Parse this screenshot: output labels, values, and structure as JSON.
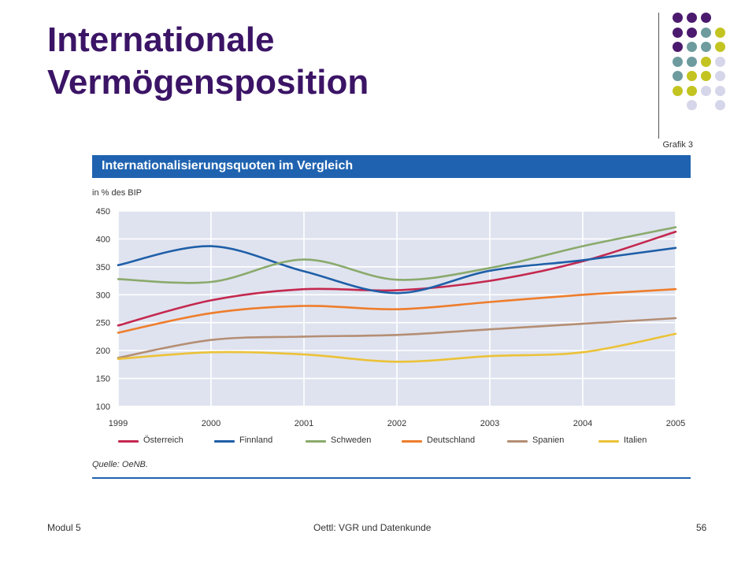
{
  "slide": {
    "title_line1": "Internationale",
    "title_line2": "Vermögensposition",
    "footer_left": "Modul 5",
    "footer_center": "Oettl: VGR und Datenkunde",
    "footer_right": "56"
  },
  "decoration": {
    "dot_colors": [
      "#4b1a6e",
      "#6e9b9e",
      "#c3c421",
      "#d6d6ea"
    ],
    "dot_rows": [
      [
        0,
        0,
        0,
        null
      ],
      [
        0,
        0,
        1,
        2
      ],
      [
        0,
        1,
        1,
        2
      ],
      [
        1,
        1,
        2,
        3
      ],
      [
        1,
        2,
        2,
        3
      ],
      [
        2,
        2,
        3,
        3
      ],
      [
        null,
        3,
        null,
        3
      ]
    ]
  },
  "chart_data": {
    "type": "line",
    "grafik_label": "Grafik 3",
    "title": "Internationalisierungsquoten im Vergleich",
    "ylabel": "in % des BIP",
    "source": "Quelle: OeNB.",
    "x": [
      "1999",
      "2000",
      "2001",
      "2002",
      "2003",
      "2004",
      "2005"
    ],
    "ylim": [
      100,
      450
    ],
    "yticks": [
      100,
      150,
      200,
      250,
      300,
      350,
      400,
      450
    ],
    "grid": true,
    "background": "#dfe3ef",
    "legend_position": "bottom",
    "series": [
      {
        "name": "Österreich",
        "color": "#c4284f",
        "values": [
          245,
          290,
          310,
          308,
          325,
          360,
          413
        ]
      },
      {
        "name": "Finnland",
        "color": "#1f5fa8",
        "values": [
          353,
          387,
          342,
          303,
          343,
          362,
          384
        ]
      },
      {
        "name": "Schweden",
        "color": "#8aaa6c",
        "values": [
          328,
          323,
          363,
          327,
          348,
          387,
          421
        ]
      },
      {
        "name": "Deutschland",
        "color": "#ee7d2c",
        "values": [
          232,
          267,
          280,
          274,
          287,
          300,
          310
        ]
      },
      {
        "name": "Spanien",
        "color": "#b48e74",
        "values": [
          187,
          219,
          225,
          228,
          238,
          248,
          258
        ]
      },
      {
        "name": "Italien",
        "color": "#ebc238",
        "values": [
          185,
          197,
          193,
          180,
          190,
          197,
          230
        ]
      }
    ]
  }
}
